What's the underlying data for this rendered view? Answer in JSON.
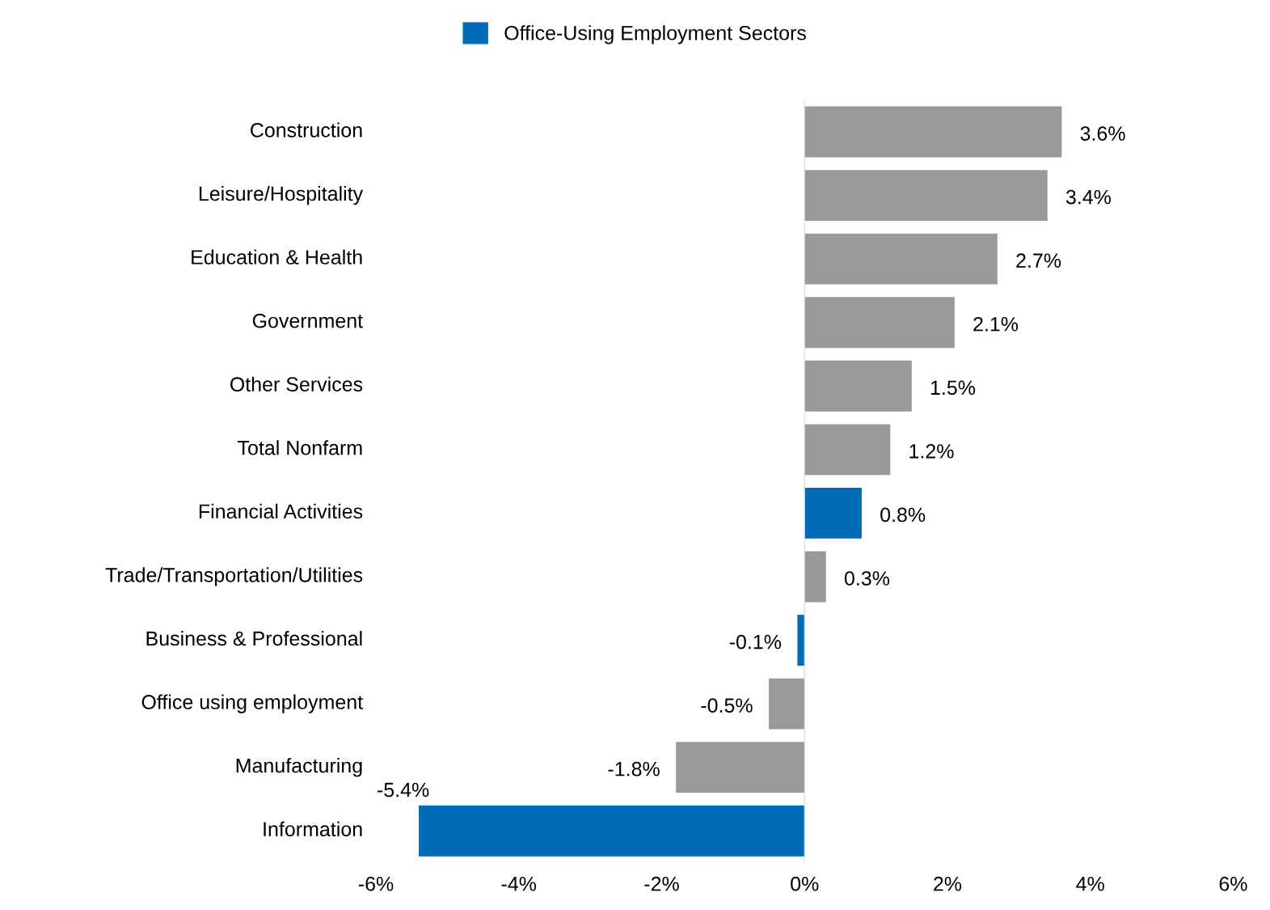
{
  "chart_data": {
    "type": "bar",
    "orientation": "horizontal",
    "categories": [
      "Construction",
      "Leisure/Hospitality",
      "Education & Health",
      "Government",
      "Other Services",
      "Total Nonfarm",
      "Financial Activities",
      "Trade/Transportation/Utilities",
      "Business & Professional",
      "Office using employment",
      "Manufacturing",
      "Information"
    ],
    "series": [
      {
        "name": "Office-Using Employment Sectors",
        "color": "#006bb6",
        "values": [
          null,
          null,
          null,
          null,
          null,
          null,
          0.8,
          null,
          -0.1,
          null,
          null,
          -5.4
        ]
      },
      {
        "color": "#999999",
        "values": [
          3.6,
          3.4,
          2.7,
          2.1,
          1.5,
          1.2,
          null,
          0.3,
          null,
          -0.5,
          -1.8,
          null
        ]
      }
    ],
    "value_labels": [
      "3.6%",
      "3.4%",
      "2.7%",
      "2.1%",
      "1.5%",
      "1.2%",
      "0.8%",
      "0.3%",
      "-0.1%",
      "-0.5%",
      "-1.8%",
      "-5.4%"
    ],
    "xlim": [
      -6,
      6
    ],
    "xticks": [
      {
        "value": -6,
        "label": "-6%"
      },
      {
        "value": -4,
        "label": "-4%"
      },
      {
        "value": -2,
        "label": "-2%"
      },
      {
        "value": 0,
        "label": "0%"
      },
      {
        "value": 2,
        "label": "2%"
      },
      {
        "value": 4,
        "label": "4%"
      },
      {
        "value": 6,
        "label": "6%"
      }
    ],
    "legend": "top"
  }
}
